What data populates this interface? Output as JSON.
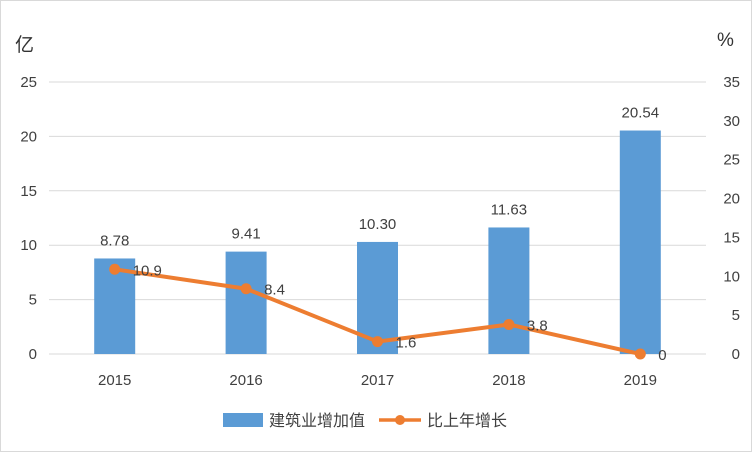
{
  "chart_data": {
    "type": "bar+line",
    "categories": [
      "2015",
      "2016",
      "2017",
      "2018",
      "2019"
    ],
    "series": [
      {
        "name": "建筑业增加值",
        "type": "bar",
        "axis": "left",
        "values": [
          8.78,
          9.41,
          10.3,
          11.63,
          20.54
        ],
        "labels": [
          "8.78",
          "9.41",
          "10.30",
          "11.63",
          "20.54"
        ],
        "color": "#5b9bd5"
      },
      {
        "name": "比上年增长",
        "type": "line",
        "axis": "right",
        "values": [
          10.9,
          8.4,
          1.6,
          3.8,
          0
        ],
        "labels": [
          "10.9",
          "8.4",
          "1.6",
          "3.8",
          "0"
        ],
        "color": "#ed7d31"
      }
    ],
    "y_left": {
      "unit": "亿",
      "range": [
        0,
        25
      ],
      "ticks": [
        "0",
        "5",
        "10",
        "15",
        "20",
        "25"
      ]
    },
    "y_right": {
      "unit": "%",
      "range": [
        0,
        35
      ],
      "ticks": [
        "0",
        "5",
        "10",
        "15",
        "20",
        "25",
        "30",
        "35"
      ]
    },
    "grid": true,
    "legend_position": "bottom"
  }
}
